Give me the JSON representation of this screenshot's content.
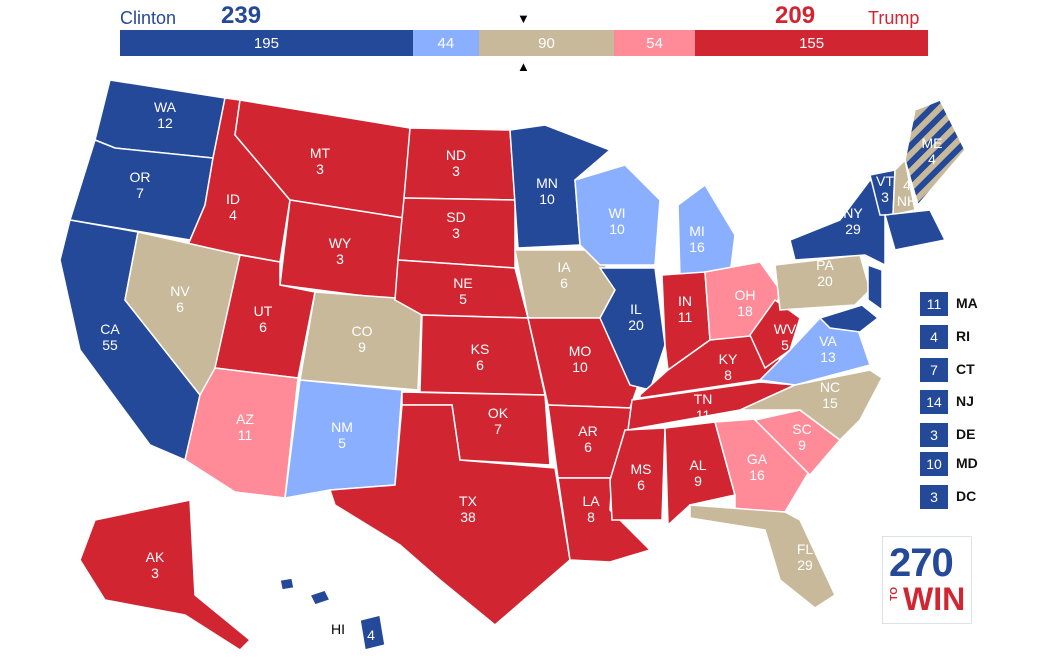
{
  "colors": {
    "safe_dem": "#244999",
    "lean_dem": "#8aafff",
    "tossup": "#c9b99b",
    "lean_rep": "#ff8b98",
    "safe_rep": "#d22532",
    "dem_text": "#244999",
    "rep_text": "#d22532"
  },
  "header": {
    "dem_name": "Clinton",
    "dem_total": "239",
    "rep_name": "Trump",
    "rep_total": "209",
    "segments": [
      {
        "id": "safe-dem",
        "value": "195",
        "category": "safe_dem",
        "votes": 195
      },
      {
        "id": "lean-dem",
        "value": "44",
        "category": "lean_dem",
        "votes": 44
      },
      {
        "id": "tossup",
        "value": "90",
        "category": "tossup",
        "votes": 90
      },
      {
        "id": "lean-rep",
        "value": "54",
        "category": "lean_rep",
        "votes": 54
      },
      {
        "id": "safe-rep",
        "value": "155",
        "category": "safe_rep",
        "votes": 155
      }
    ],
    "marker_top": "▼",
    "marker_bottom": "▲"
  },
  "states": [
    {
      "abbr": "WA",
      "ev": "12",
      "category": "safe_dem"
    },
    {
      "abbr": "OR",
      "ev": "7",
      "category": "safe_dem"
    },
    {
      "abbr": "CA",
      "ev": "55",
      "category": "safe_dem"
    },
    {
      "abbr": "ID",
      "ev": "4",
      "category": "safe_rep"
    },
    {
      "abbr": "NV",
      "ev": "6",
      "category": "tossup"
    },
    {
      "abbr": "MT",
      "ev": "3",
      "category": "safe_rep"
    },
    {
      "abbr": "WY",
      "ev": "3",
      "category": "safe_rep"
    },
    {
      "abbr": "UT",
      "ev": "6",
      "category": "safe_rep"
    },
    {
      "abbr": "AZ",
      "ev": "11",
      "category": "lean_rep"
    },
    {
      "abbr": "CO",
      "ev": "9",
      "category": "tossup"
    },
    {
      "abbr": "NM",
      "ev": "5",
      "category": "lean_dem"
    },
    {
      "abbr": "ND",
      "ev": "3",
      "category": "safe_rep"
    },
    {
      "abbr": "SD",
      "ev": "3",
      "category": "safe_rep"
    },
    {
      "abbr": "NE",
      "ev": "5",
      "category": "safe_rep"
    },
    {
      "abbr": "KS",
      "ev": "6",
      "category": "safe_rep"
    },
    {
      "abbr": "OK",
      "ev": "7",
      "category": "safe_rep"
    },
    {
      "abbr": "TX",
      "ev": "38",
      "category": "safe_rep"
    },
    {
      "abbr": "MN",
      "ev": "10",
      "category": "safe_dem"
    },
    {
      "abbr": "IA",
      "ev": "6",
      "category": "tossup"
    },
    {
      "abbr": "MO",
      "ev": "10",
      "category": "safe_rep"
    },
    {
      "abbr": "AR",
      "ev": "6",
      "category": "safe_rep"
    },
    {
      "abbr": "LA",
      "ev": "8",
      "category": "safe_rep"
    },
    {
      "abbr": "WI",
      "ev": "10",
      "category": "lean_dem"
    },
    {
      "abbr": "IL",
      "ev": "20",
      "category": "safe_dem"
    },
    {
      "abbr": "MI",
      "ev": "16",
      "category": "lean_dem"
    },
    {
      "abbr": "IN",
      "ev": "11",
      "category": "safe_rep"
    },
    {
      "abbr": "OH",
      "ev": "18",
      "category": "lean_rep"
    },
    {
      "abbr": "KY",
      "ev": "8",
      "category": "safe_rep"
    },
    {
      "abbr": "TN",
      "ev": "11",
      "category": "safe_rep"
    },
    {
      "abbr": "MS",
      "ev": "6",
      "category": "safe_rep"
    },
    {
      "abbr": "AL",
      "ev": "9",
      "category": "safe_rep"
    },
    {
      "abbr": "GA",
      "ev": "16",
      "category": "lean_rep"
    },
    {
      "abbr": "FL",
      "ev": "29",
      "category": "tossup"
    },
    {
      "abbr": "SC",
      "ev": "9",
      "category": "lean_rep"
    },
    {
      "abbr": "NC",
      "ev": "15",
      "category": "tossup"
    },
    {
      "abbr": "VA",
      "ev": "13",
      "category": "lean_dem"
    },
    {
      "abbr": "WV",
      "ev": "5",
      "category": "safe_rep"
    },
    {
      "abbr": "PA",
      "ev": "20",
      "category": "tossup"
    },
    {
      "abbr": "NY",
      "ev": "29",
      "category": "safe_dem"
    },
    {
      "abbr": "VT",
      "ev": "3",
      "category": "safe_dem"
    },
    {
      "abbr": "NH",
      "ev": "4",
      "category": "tossup"
    },
    {
      "abbr": "ME",
      "ev": "4",
      "category": "split_dem_tossup"
    },
    {
      "abbr": "AK",
      "ev": "3",
      "category": "safe_rep"
    },
    {
      "abbr": "HI",
      "ev": "4",
      "category": "safe_dem"
    }
  ],
  "small_states": [
    {
      "abbr": "MA",
      "ev": "11",
      "category": "safe_dem"
    },
    {
      "abbr": "RI",
      "ev": "4",
      "category": "safe_dem"
    },
    {
      "abbr": "CT",
      "ev": "7",
      "category": "safe_dem"
    },
    {
      "abbr": "NJ",
      "ev": "14",
      "category": "safe_dem"
    },
    {
      "abbr": "DE",
      "ev": "3",
      "category": "safe_dem"
    },
    {
      "abbr": "MD",
      "ev": "10",
      "category": "safe_dem"
    },
    {
      "abbr": "DC",
      "ev": "3",
      "category": "safe_dem"
    }
  ],
  "logo": {
    "top": "270",
    "to": "TO",
    "bottom": "WIN"
  }
}
